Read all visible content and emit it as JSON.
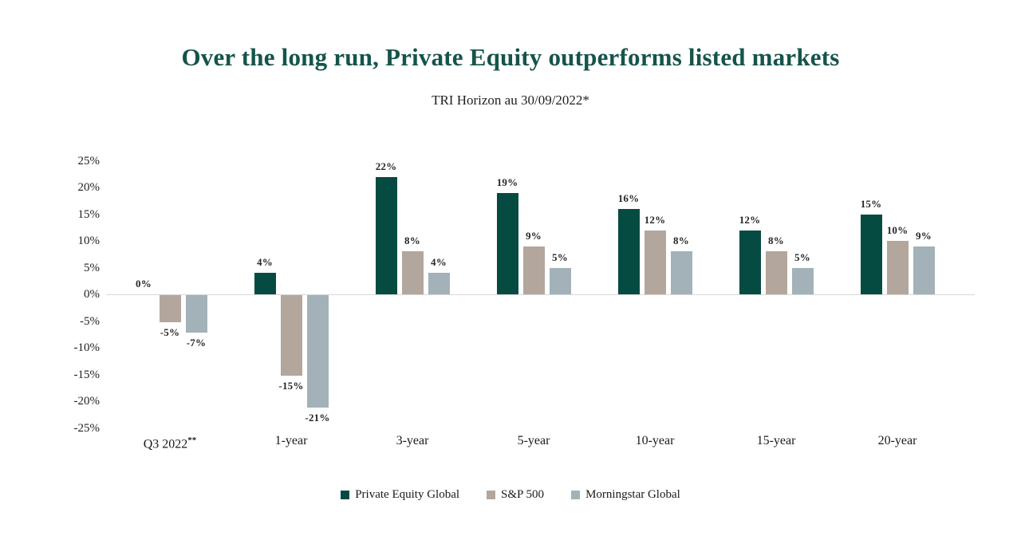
{
  "chart_data": {
    "type": "bar",
    "title": "Over the long run, Private Equity outperforms listed markets",
    "subtitle": "TRI Horizon au 30/09/2022*",
    "title_color": "#15544b",
    "categories": [
      "Q3 2022**",
      "1-year",
      "3-year",
      "5-year",
      "10-year",
      "15-year",
      "20-year"
    ],
    "series": [
      {
        "name": "Private Equity Global",
        "color": "#064b42",
        "values": [
          0,
          4,
          22,
          19,
          16,
          12,
          15
        ]
      },
      {
        "name": "S&P 500",
        "color": "#b3a69c",
        "values": [
          -5,
          -15,
          8,
          9,
          12,
          8,
          10
        ]
      },
      {
        "name": "Morningstar Global",
        "color": "#a3b2b8",
        "values": [
          -7,
          -21,
          4,
          5,
          8,
          5,
          9
        ]
      }
    ],
    "data_label_suffix": "%",
    "y_axis": {
      "ticks": [
        {
          "value": 25,
          "label": "25%"
        },
        {
          "value": 20,
          "label": "20%"
        },
        {
          "value": 15,
          "label": "15%"
        },
        {
          "value": 10,
          "label": "10%"
        },
        {
          "value": 5,
          "label": "5%"
        },
        {
          "value": 0,
          "label": "0%"
        },
        {
          "value": -5,
          "label": "-5%"
        },
        {
          "value": -10,
          "label": "-10%"
        },
        {
          "value": -15,
          "label": "-15%"
        },
        {
          "value": -20,
          "label": "-20%"
        },
        {
          "value": -25,
          "label": "-25%"
        }
      ],
      "range": [
        -25,
        25
      ],
      "grid": false
    },
    "axis_line_color": "#d7d7d7",
    "legend_position": "bottom"
  }
}
